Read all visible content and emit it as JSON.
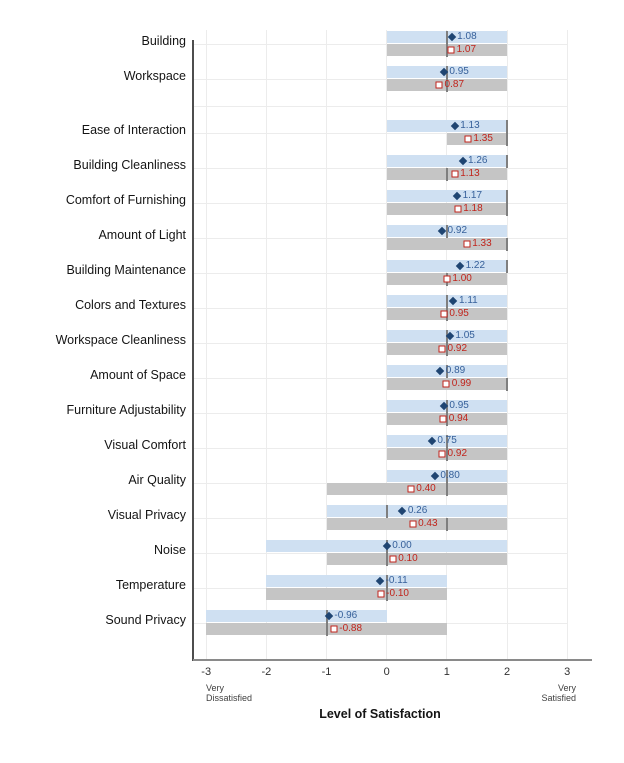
{
  "page": {
    "background": "#ffffff"
  },
  "chart_data": {
    "type": "bar",
    "orientation": "horizontal",
    "title": "",
    "xlabel": "Level of Satisfaction",
    "x_axis": {
      "min": -3,
      "max": 3,
      "ticks": [
        "-3",
        "-2",
        "-1",
        "0",
        "1",
        "2",
        "3"
      ],
      "min_caption": "Very\nDissatisfied",
      "max_caption": "Very\nSatisfied",
      "grid": true
    },
    "legend": "none",
    "colors": {
      "blue_bar": "#cfe0f2",
      "gray_bar": "#c5c5c5",
      "diamond_marker": "#1f4572",
      "blue_label": "#36609a",
      "red_marker": "#c0241c",
      "red_label": "#c0241c",
      "median_line": "#7f7f7f"
    },
    "series_legend": [
      {
        "key": "blue",
        "marker": "filled-diamond"
      },
      {
        "key": "red",
        "marker": "open-square"
      }
    ],
    "rows": [
      {
        "label": "Building",
        "group": 0,
        "blue": {
          "bar": [
            0,
            2
          ],
          "median": 1,
          "value": 1.08
        },
        "red": {
          "bar": [
            0,
            2
          ],
          "median": 1,
          "value": 1.07
        }
      },
      {
        "label": "Workspace",
        "group": 0,
        "blue": {
          "bar": [
            0,
            2
          ],
          "median": 1,
          "value": 0.95
        },
        "red": {
          "bar": [
            0,
            2
          ],
          "median": 1,
          "value": 0.87
        }
      },
      {
        "label": "Ease of Interaction",
        "group": 1,
        "blue": {
          "bar": [
            0,
            2
          ],
          "median": 2,
          "value": 1.13
        },
        "red": {
          "bar": [
            1,
            2
          ],
          "median": 2,
          "value": 1.35
        }
      },
      {
        "label": "Building Cleanliness",
        "group": 1,
        "blue": {
          "bar": [
            0,
            2
          ],
          "median": 2,
          "value": 1.26
        },
        "red": {
          "bar": [
            0,
            2
          ],
          "median": 1,
          "value": 1.13
        }
      },
      {
        "label": "Comfort of Furnishing",
        "group": 1,
        "blue": {
          "bar": [
            0,
            2
          ],
          "median": 2,
          "value": 1.17
        },
        "red": {
          "bar": [
            0,
            2
          ],
          "median": 2,
          "value": 1.18
        }
      },
      {
        "label": "Amount of Light",
        "group": 1,
        "blue": {
          "bar": [
            0,
            2
          ],
          "median": 1,
          "value": 0.92
        },
        "red": {
          "bar": [
            0,
            2
          ],
          "median": 2,
          "value": 1.33
        }
      },
      {
        "label": "Building Maintenance",
        "group": 1,
        "blue": {
          "bar": [
            0,
            2
          ],
          "median": 2,
          "value": 1.22
        },
        "red": {
          "bar": [
            0,
            2
          ],
          "median": 1,
          "value": 1.0
        }
      },
      {
        "label": "Colors and Textures",
        "group": 1,
        "blue": {
          "bar": [
            0,
            2
          ],
          "median": 1,
          "value": 1.11
        },
        "red": {
          "bar": [
            0,
            2
          ],
          "median": 1,
          "value": 0.95
        }
      },
      {
        "label": "Workspace Cleanliness",
        "group": 1,
        "blue": {
          "bar": [
            0,
            2
          ],
          "median": 1,
          "value": 1.05
        },
        "red": {
          "bar": [
            0,
            2
          ],
          "median": 1,
          "value": 0.92
        }
      },
      {
        "label": "Amount of Space",
        "group": 1,
        "blue": {
          "bar": [
            0,
            2
          ],
          "median": 1,
          "value": 0.89
        },
        "red": {
          "bar": [
            0,
            2
          ],
          "median": 2,
          "value": 0.99
        }
      },
      {
        "label": "Furniture Adjustability",
        "group": 1,
        "blue": {
          "bar": [
            0,
            2
          ],
          "median": 1,
          "value": 0.95
        },
        "red": {
          "bar": [
            0,
            2
          ],
          "median": 1,
          "value": 0.94
        }
      },
      {
        "label": "Visual Comfort",
        "group": 1,
        "blue": {
          "bar": [
            0,
            2
          ],
          "median": 1,
          "value": 0.75
        },
        "red": {
          "bar": [
            0,
            2
          ],
          "median": 1,
          "value": 0.92
        }
      },
      {
        "label": "Air Quality",
        "group": 1,
        "blue": {
          "bar": [
            0,
            2
          ],
          "median": 1,
          "value": 0.8
        },
        "red": {
          "bar": [
            -1,
            2
          ],
          "median": 1,
          "value": 0.4
        }
      },
      {
        "label": "Visual Privacy",
        "group": 1,
        "blue": {
          "bar": [
            -1,
            2
          ],
          "median": 0,
          "value": 0.26
        },
        "red": {
          "bar": [
            -1,
            2
          ],
          "median": 1,
          "value": 0.43
        }
      },
      {
        "label": "Noise",
        "group": 1,
        "blue": {
          "bar": [
            -2,
            2
          ],
          "median": 0,
          "value": 0.0
        },
        "red": {
          "bar": [
            -1,
            2
          ],
          "median": 0,
          "value": 0.1
        }
      },
      {
        "label": "Temperature",
        "group": 1,
        "blue": {
          "bar": [
            -2,
            1
          ],
          "median": 0,
          "value": -0.11
        },
        "red": {
          "bar": [
            -2,
            1
          ],
          "median": 0,
          "value": -0.1
        }
      },
      {
        "label": "Sound Privacy",
        "group": 1,
        "blue": {
          "bar": [
            -3,
            0
          ],
          "median": -1,
          "value": -0.96
        },
        "red": {
          "bar": [
            -3,
            1
          ],
          "median": -1,
          "value": -0.88
        }
      }
    ]
  }
}
